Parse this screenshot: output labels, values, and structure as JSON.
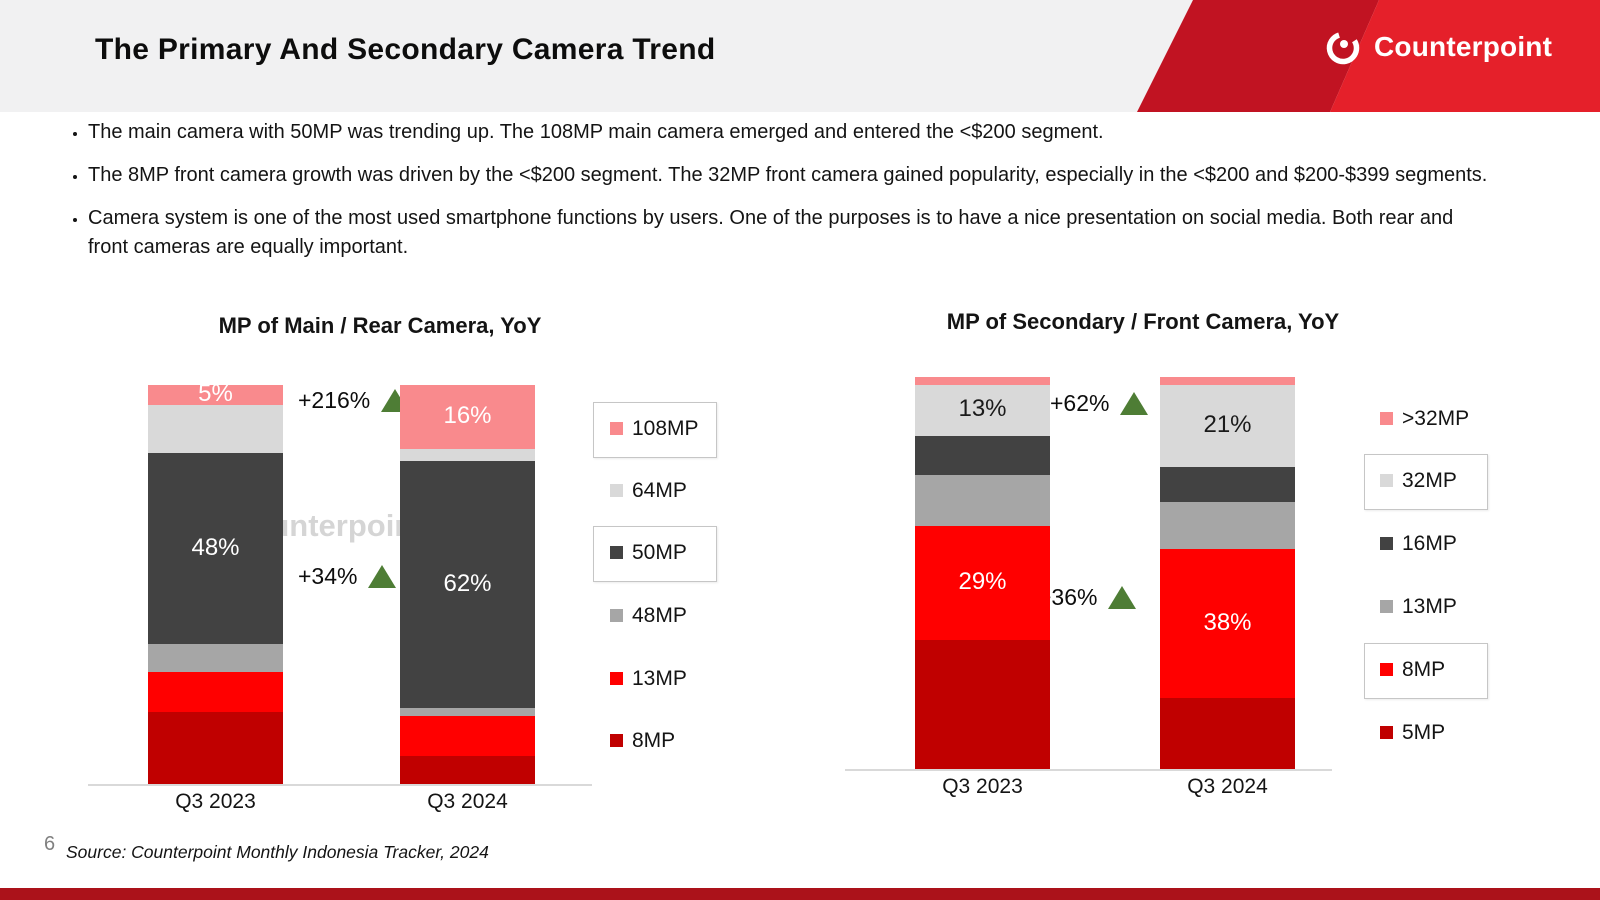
{
  "header": {
    "title": "The Primary And Secondary Camera Trend",
    "brand": "Counterpoint"
  },
  "bullets": [
    "The main camera with 50MP was trending up. The 108MP main camera emerged and entered the <$200 segment.",
    "The 8MP front camera growth was driven by the <$200 segment. The 32MP front camera gained popularity, especially in the <$200 and $200-$399 segments.",
    "Camera system is one of the most used smartphone functions by users. One of the purposes is to have a nice presentation on social media. Both rear and front cameras are equally important."
  ],
  "colors": {
    "header_band": "#f1f1f2",
    "banner_dark": "#c11322",
    "banner_bright": "#e5202a",
    "footer_bar": "#ab121a",
    "growth_green": "#4e7d35",
    "axis": "#d9d9d9"
  },
  "icons": {
    "brand": "counterpoint-ring-icon",
    "growth": "triangle-up-icon"
  },
  "watermark": {
    "text": "Counterpoint"
  },
  "footer": {
    "page_number": "6",
    "source": "Source: Counterpoint Monthly Indonesia Tracker, 2024"
  },
  "chart_data": [
    {
      "type": "bar",
      "subtype": "stacked-100-percent",
      "title": "MP of Main / Rear Camera, YoY",
      "categories": [
        "Q3 2023",
        "Q3 2024"
      ],
      "unit": "%",
      "ylim": [
        0,
        100
      ],
      "grid": false,
      "legend_position": "right",
      "series": [
        {
          "name": "8MP",
          "color": "#c00000",
          "values": [
            18,
            7
          ]
        },
        {
          "name": "13MP",
          "color": "#ff0000",
          "values": [
            10,
            10
          ]
        },
        {
          "name": "48MP",
          "color": "#a6a6a6",
          "values": [
            7,
            2
          ]
        },
        {
          "name": "50MP",
          "color": "#424242",
          "values": [
            48,
            62
          ]
        },
        {
          "name": "64MP",
          "color": "#d9d9d9",
          "values": [
            12,
            3
          ]
        },
        {
          "name": "108MP",
          "color": "#f98a8d",
          "values": [
            5,
            16
          ]
        }
      ],
      "data_labels": [
        {
          "series": "108MP",
          "category": 0,
          "text": "5%",
          "color": "#ffffff"
        },
        {
          "series": "50MP",
          "category": 0,
          "text": "48%",
          "color": "#ffffff"
        },
        {
          "series": "108MP",
          "category": 1,
          "text": "16%",
          "color": "#ffffff"
        },
        {
          "series": "50MP",
          "category": 1,
          "text": "62%",
          "color": "#ffffff"
        }
      ],
      "annotations": [
        {
          "text": "+216%",
          "icon": "triangle-up-icon"
        },
        {
          "text": "+34%",
          "icon": "triangle-up-icon"
        }
      ],
      "legend": [
        {
          "name": "108MP",
          "color": "#f98a8d",
          "boxed": true
        },
        {
          "name": "64MP",
          "color": "#d9d9d9",
          "boxed": false
        },
        {
          "name": "50MP",
          "color": "#424242",
          "boxed": true
        },
        {
          "name": "48MP",
          "color": "#a6a6a6",
          "boxed": false
        },
        {
          "name": "13MP",
          "color": "#ff0000",
          "boxed": false
        },
        {
          "name": "8MP",
          "color": "#c00000",
          "boxed": false
        }
      ]
    },
    {
      "type": "bar",
      "subtype": "stacked-100-percent",
      "title": "MP of Secondary / Front Camera, YoY",
      "categories": [
        "Q3 2023",
        "Q3 2024"
      ],
      "unit": "%",
      "ylim": [
        0,
        100
      ],
      "grid": false,
      "legend_position": "right",
      "series": [
        {
          "name": "5MP",
          "color": "#c00000",
          "values": [
            33,
            18
          ]
        },
        {
          "name": "8MP",
          "color": "#ff0000",
          "values": [
            29,
            38
          ]
        },
        {
          "name": "13MP",
          "color": "#a6a6a6",
          "values": [
            13,
            12
          ]
        },
        {
          "name": "16MP",
          "color": "#424242",
          "values": [
            10,
            9
          ]
        },
        {
          "name": "32MP",
          "color": "#d9d9d9",
          "values": [
            13,
            21
          ]
        },
        {
          "name": ">32MP",
          "color": "#f98a8d",
          "values": [
            2,
            2
          ]
        }
      ],
      "data_labels": [
        {
          "series": "32MP",
          "category": 0,
          "text": "13%",
          "color": "#1a1a1a"
        },
        {
          "series": "8MP",
          "category": 0,
          "text": "29%",
          "color": "#ffffff"
        },
        {
          "series": "32MP",
          "category": 1,
          "text": "21%",
          "color": "#1a1a1a"
        },
        {
          "series": "8MP",
          "category": 1,
          "text": "38%",
          "color": "#ffffff"
        }
      ],
      "annotations": [
        {
          "text": "+62%",
          "icon": "triangle-up-icon"
        },
        {
          "text": "+36%",
          "icon": "triangle-up-icon"
        }
      ],
      "legend": [
        {
          "name": ">32MP",
          "color": "#f98a8d",
          "boxed": false
        },
        {
          "name": "32MP",
          "color": "#d9d9d9",
          "boxed": true
        },
        {
          "name": "16MP",
          "color": "#424242",
          "boxed": false
        },
        {
          "name": "13MP",
          "color": "#a6a6a6",
          "boxed": false
        },
        {
          "name": "8MP",
          "color": "#ff0000",
          "boxed": true
        },
        {
          "name": "5MP",
          "color": "#c00000",
          "boxed": false
        }
      ]
    }
  ]
}
